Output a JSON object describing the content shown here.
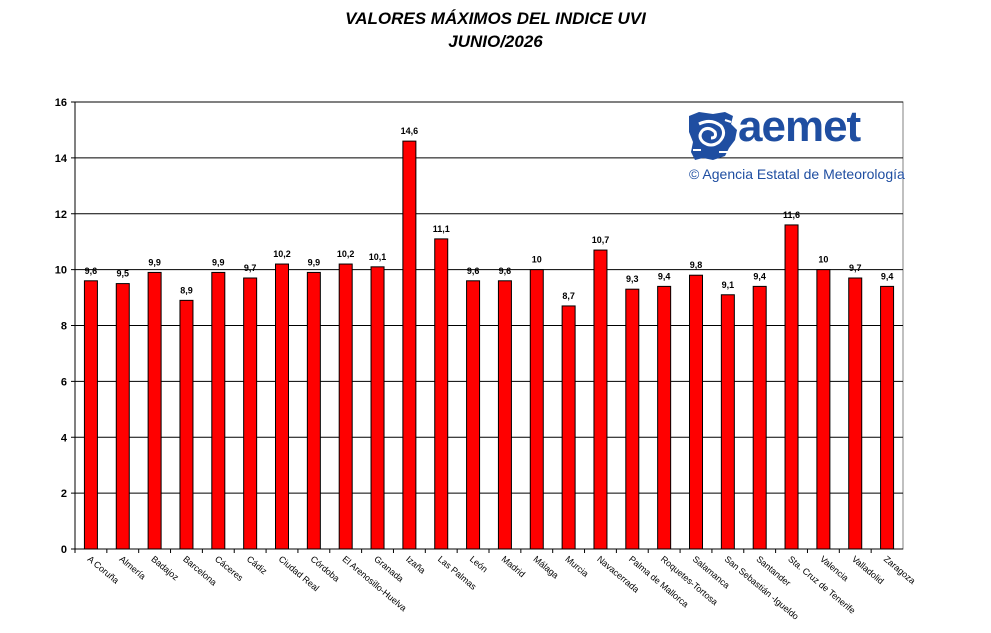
{
  "title_line1": "VALORES MÁXIMOS DEL INDICE UVI",
  "title_line2": "JUNIO/2026",
  "logo": {
    "word": "aemet",
    "subtitle": "© Agencia Estatal de Meteorología",
    "icon": "aemet-spain-map-icon"
  },
  "colors": {
    "bar": "#ff0000",
    "bar_border": "#000000",
    "grid": "#000000",
    "plot_border": "#808080"
  },
  "chart_data": {
    "type": "bar",
    "title": "VALORES MÁXIMOS DEL INDICE UVI",
    "subtitle": "JUNIO/2026",
    "xlabel": "",
    "ylabel": "",
    "ylim": [
      0,
      16
    ],
    "yticks": [
      0,
      2,
      4,
      6,
      8,
      10,
      12,
      14,
      16
    ],
    "grid": true,
    "legend": "none",
    "categories": [
      "A Coruña",
      "Almería",
      "Badajoz",
      "Barcelona",
      "Cáceres",
      "Cádiz",
      "Ciudad Real",
      "Córdoba",
      "El Arenosillo-Huelva",
      "Granada",
      "Izaña",
      "Las Palmas",
      "León",
      "Madrid",
      "Málaga",
      "Murcia",
      "Navacerrada",
      "Palma de Mallorca",
      "Roquetes-Tortosa",
      "Salamanca",
      "San Sebastián -Igueldo",
      "Santander",
      "Sta. Cruz de Tenerife",
      "Valencia",
      "Valladolid",
      "Zaragoza"
    ],
    "values": [
      9.6,
      9.5,
      9.9,
      8.9,
      9.9,
      9.7,
      10.2,
      9.9,
      10.2,
      10.1,
      14.6,
      11.1,
      9.6,
      9.6,
      10,
      8.7,
      10.7,
      9.3,
      9.4,
      9.8,
      9.1,
      9.4,
      11.6,
      10,
      9.7,
      9.4
    ],
    "value_labels": [
      "9,6",
      "9,5",
      "9,9",
      "8,9",
      "9,9",
      "9,7",
      "10,2",
      "9,9",
      "10,2",
      "10,1",
      "14,6",
      "11,1",
      "9,6",
      "9,6",
      "10",
      "8,7",
      "10,7",
      "9,3",
      "9,4",
      "9,8",
      "9,1",
      "9,4",
      "11,6",
      "10",
      "9,7",
      "9,4"
    ]
  }
}
